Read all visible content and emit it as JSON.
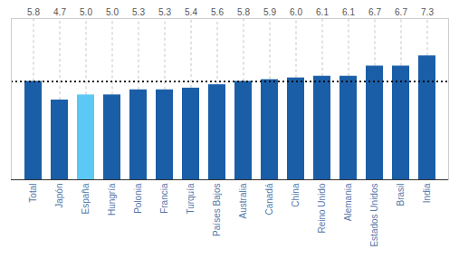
{
  "chart_data": {
    "type": "bar",
    "categories": [
      "Total",
      "Japón",
      "España",
      "Hungría",
      "Polonia",
      "Francia",
      "Turquía",
      "Países Bajos",
      "Australia",
      "Canadá",
      "China",
      "Reino Unido",
      "Alemania",
      "Estados Unidos",
      "Brasil",
      "India"
    ],
    "values": [
      5.8,
      4.7,
      5.0,
      5.0,
      5.3,
      5.3,
      5.4,
      5.6,
      5.8,
      5.9,
      6.0,
      6.1,
      6.1,
      6.7,
      6.7,
      7.3
    ],
    "value_labels": [
      "5.8",
      "4.7",
      "5.0",
      "5.0",
      "5.3",
      "5.3",
      "5.4",
      "5.6",
      "5.8",
      "5.9",
      "6.0",
      "6.1",
      "6.1",
      "6.7",
      "6.7",
      "7.3"
    ],
    "colors": [
      "#1a5ea8",
      "#1a5ea8",
      "#5bc8f5",
      "#1a5ea8",
      "#1a5ea8",
      "#1a5ea8",
      "#1a5ea8",
      "#1a5ea8",
      "#1a5ea8",
      "#1a5ea8",
      "#1a5ea8",
      "#1a5ea8",
      "#1a5ea8",
      "#1a5ea8",
      "#1a5ea8",
      "#1a5ea8"
    ],
    "reference_line": 5.8,
    "ylim": [
      0,
      9.5
    ],
    "data_labels": true,
    "tick_labels": "x",
    "grid": false
  }
}
